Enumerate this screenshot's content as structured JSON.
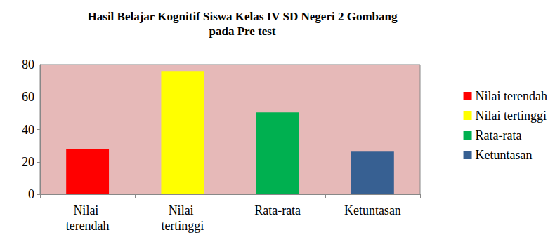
{
  "chart_data": {
    "type": "bar",
    "title": "Hasil Belajar Kognitif Siswa Kelas IV SD Negeri 2 Gombang\npada Pre test",
    "categories": [
      "Nilai terendah",
      "Nilai tertinggi",
      "Rata-rata",
      "Ketuntasan"
    ],
    "values": [
      28,
      76,
      50.5,
      26.3
    ],
    "colors": [
      "#ff0000",
      "#ffff00",
      "#00b050",
      "#376092"
    ],
    "ylim": [
      0,
      80
    ],
    "yticks": [
      0,
      20,
      40,
      60,
      80
    ],
    "grid": false,
    "legend": "right"
  }
}
